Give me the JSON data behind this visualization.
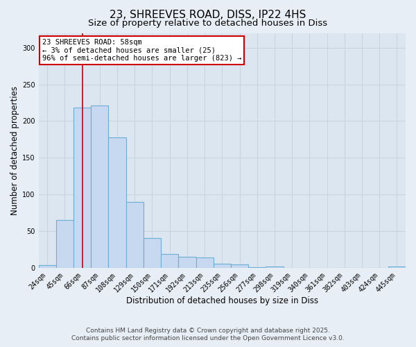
{
  "title1": "23, SHREEVES ROAD, DISS, IP22 4HS",
  "title2": "Size of property relative to detached houses in Diss",
  "xlabel": "Distribution of detached houses by size in Diss",
  "ylabel": "Number of detached properties",
  "bar_values": [
    4,
    65,
    218,
    221,
    178,
    90,
    41,
    19,
    15,
    14,
    6,
    5,
    1,
    2,
    0,
    0,
    0,
    0,
    0,
    0,
    2
  ],
  "bar_labels": [
    "24sqm",
    "45sqm",
    "66sqm",
    "87sqm",
    "108sqm",
    "129sqm",
    "150sqm",
    "171sqm",
    "192sqm",
    "213sqm",
    "235sqm",
    "256sqm",
    "277sqm",
    "298sqm",
    "319sqm",
    "340sqm",
    "361sqm",
    "382sqm",
    "403sqm",
    "424sqm",
    "445sqm"
  ],
  "bar_color": "#c6d9f0",
  "bar_edge_color": "#6baed6",
  "bar_edge_width": 0.8,
  "red_line_index": 2,
  "red_line_color": "#cc0000",
  "annotation_text": "23 SHREEVES ROAD: 58sqm\n← 3% of detached houses are smaller (25)\n96% of semi-detached houses are larger (823) →",
  "annotation_box_facecolor": "#ffffff",
  "annotation_box_edgecolor": "#cc0000",
  "ylim": [
    0,
    320
  ],
  "yticks": [
    0,
    50,
    100,
    150,
    200,
    250,
    300
  ],
  "footnote1": "Contains HM Land Registry data © Crown copyright and database right 2025.",
  "footnote2": "Contains public sector information licensed under the Open Government Licence v3.0.",
  "background_color": "#e8eef5",
  "plot_bg_color": "#dce6f0",
  "grid_color": "#c8d4e0",
  "title_fontsize": 11,
  "subtitle_fontsize": 9.5,
  "axis_label_fontsize": 8.5,
  "tick_fontsize": 7,
  "annotation_fontsize": 7.5,
  "footnote_fontsize": 6.5
}
